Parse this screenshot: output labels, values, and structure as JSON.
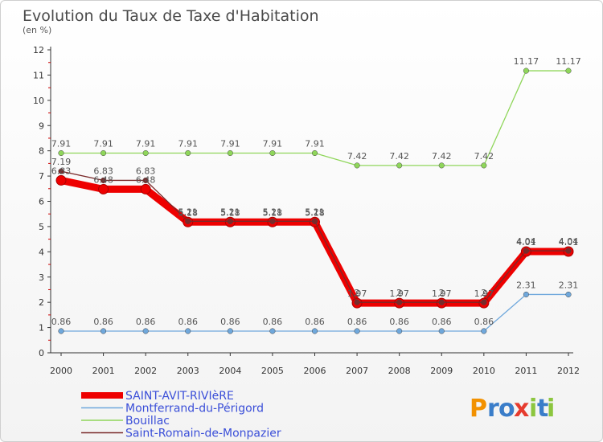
{
  "chart_data": {
    "type": "line",
    "title": "Evolution du Taux de Taxe d'Habitation",
    "subtitle": "(en %)",
    "xlabel": "",
    "ylabel": "",
    "x": [
      "2000",
      "2001",
      "2002",
      "2003",
      "2004",
      "2005",
      "2006",
      "2007",
      "2008",
      "2009",
      "2010",
      "2011",
      "2012"
    ],
    "ylim": [
      0,
      12
    ],
    "yticks": [
      "0",
      "1",
      "2",
      "3",
      "4",
      "5",
      "6",
      "7",
      "8",
      "9",
      "10",
      "11",
      "12"
    ],
    "grid": false,
    "legend_position": "bottom-left",
    "series": [
      {
        "name": "Saint-Romain-de-Monpazier",
        "color": "#7a2a2a",
        "values": [
          7.19,
          6.83,
          6.83,
          5.21,
          5.21,
          5.21,
          5.21,
          2,
          2,
          2,
          2,
          4.04,
          4.04
        ],
        "labels": [
          "7.19",
          "6.83",
          "6.83",
          "5.21",
          "5.21",
          "5.21",
          "5.21",
          "2",
          "2",
          "2",
          "2",
          "4.04",
          "4.04"
        ]
      },
      {
        "name": "Bouillac",
        "color": "#8fd65a",
        "values": [
          7.91,
          7.91,
          7.91,
          7.91,
          7.91,
          7.91,
          7.91,
          7.42,
          7.42,
          7.42,
          7.42,
          11.17,
          11.17
        ],
        "labels": [
          "7.91",
          "7.91",
          "7.91",
          "7.91",
          "7.91",
          "7.91",
          "7.91",
          "7.42",
          "7.42",
          "7.42",
          "7.42",
          "11.17",
          "11.17"
        ]
      },
      {
        "name": "Montferrand-du-Périgord",
        "color": "#6fa8dc",
        "values": [
          0.86,
          0.86,
          0.86,
          0.86,
          0.86,
          0.86,
          0.86,
          0.86,
          0.86,
          0.86,
          0.86,
          2.31,
          2.31
        ],
        "labels": [
          "0.86",
          "0.86",
          "0.86",
          "0.86",
          "0.86",
          "0.86",
          "0.86",
          "0.86",
          "0.86",
          "0.86",
          "0.86",
          "2.31",
          "2.31"
        ]
      },
      {
        "name": "SAINT-AVIT-RIVIèRE",
        "color": "#ee0000",
        "values": [
          6.83,
          6.48,
          6.48,
          5.18,
          5.18,
          5.18,
          5.18,
          1.97,
          1.97,
          1.97,
          1.97,
          4.01,
          4.01
        ],
        "labels": [
          "6.83",
          "6.48",
          "6.48",
          "5.18",
          "5.18",
          "5.18",
          "5.18",
          "1.97",
          "1.97",
          "1.97",
          "1.97",
          "4.01",
          "4.01"
        ]
      }
    ],
    "legend": [
      {
        "name": "SAINT-AVIT-RIVIèRE",
        "color": "#ee0000"
      },
      {
        "name": "Montferrand-du-Périgord",
        "color": "#6fa8dc"
      },
      {
        "name": "Bouillac",
        "color": "#8fd65a"
      },
      {
        "name": "Saint-Romain-de-Monpazier",
        "color": "#7a2a2a"
      }
    ]
  },
  "logo": {
    "letters": [
      "P",
      "r",
      "o",
      "x",
      "i",
      "t",
      "i"
    ],
    "colors": [
      "#f29100",
      "#3a7dc9",
      "#3a7dc9",
      "#e63b2e",
      "#8cc63f",
      "#3a7dc9",
      "#8cc63f"
    ]
  }
}
